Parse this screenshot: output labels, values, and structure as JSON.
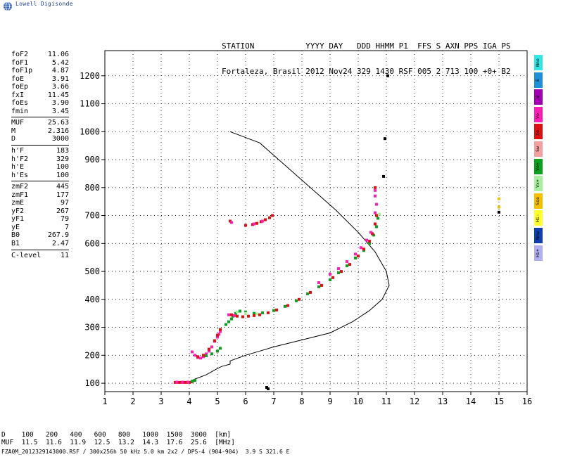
{
  "brand": "Lowell Digisonde",
  "header": {
    "line1": "STATION           YYYY DAY   DDD HHMM P1  FFS S AXN PPS IGA PS",
    "line2": "Fortaleza, Brasil 2012 Nov24 329 1430 RSF 005 2 713 100 +0+ B2"
  },
  "params": {
    "group1": [
      {
        "k": "foF2",
        "v": "11.06"
      },
      {
        "k": "foF1",
        "v": "5.42"
      },
      {
        "k": "foF1p",
        "v": "4.87"
      },
      {
        "k": "foE",
        "v": "3.91"
      },
      {
        "k": "foEp",
        "v": "3.66"
      },
      {
        "k": "fxI",
        "v": "11.45"
      },
      {
        "k": "foEs",
        "v": "3.90"
      },
      {
        "k": "fmin",
        "v": "3.45"
      }
    ],
    "group2": [
      {
        "k": "MUF",
        "v": "25.63"
      },
      {
        "k": "M",
        "v": "2.316"
      },
      {
        "k": "D",
        "v": "3000"
      }
    ],
    "group3": [
      {
        "k": "h'F",
        "v": "183"
      },
      {
        "k": "h'F2",
        "v": "329"
      },
      {
        "k": "h'E",
        "v": "100"
      },
      {
        "k": "h'Es",
        "v": "100"
      }
    ],
    "group4": [
      {
        "k": "zmF2",
        "v": "445"
      },
      {
        "k": "zmF1",
        "v": "177"
      },
      {
        "k": "zmE",
        "v": "97"
      },
      {
        "k": "yF2",
        "v": "267"
      },
      {
        "k": "yF1",
        "v": "79"
      },
      {
        "k": "yE",
        "v": "7"
      },
      {
        "k": "B0",
        "v": "267.9"
      },
      {
        "k": "B1",
        "v": "2.47"
      }
    ],
    "group5": [
      {
        "k": "C-level",
        "v": "11"
      }
    ]
  },
  "legend": [
    {
      "label": "Nne",
      "color": "#33e5e5"
    },
    {
      "label": "E",
      "color": "#1f8fd6"
    },
    {
      "label": "W",
      "color": "#a000b0"
    },
    {
      "label": "Vo-",
      "color": "#ff1fb4"
    },
    {
      "label": "Xo-",
      "color": "#e01010"
    },
    {
      "label": "Sw",
      "color": "#f2a0a0"
    },
    {
      "label": "Vo+",
      "color": "#0aa020"
    },
    {
      "label": "Vx+",
      "color": "#a8f0a0"
    },
    {
      "label": "Sse",
      "color": "#f5c000"
    },
    {
      "label": "Hi-",
      "color": "#ffff30"
    },
    {
      "label": "Nnw",
      "color": "#1040b0"
    },
    {
      "label": "Hi+",
      "color": "#b0b0f0"
    }
  ],
  "muf_table": {
    "d_label": "D",
    "d_values": [
      "100",
      "200",
      "400",
      "600",
      "800",
      "1000",
      "1500",
      "3000"
    ],
    "d_unit": "[km]",
    "muf_label": "MUF",
    "muf_values": [
      "11.5",
      "11.6",
      "11.9",
      "12.5",
      "13.2",
      "14.3",
      "17.6",
      "25.6"
    ],
    "muf_unit": "[MHz]"
  },
  "footer": "FZA0M_2012329143000.RSF / 300x256h 50 kHz 5.0 km 2x2 / DPS-4 (904-904)  3.9 S 321.6 E",
  "chart_data": {
    "type": "scatter",
    "xlim": [
      1,
      16
    ],
    "ylim": [
      70,
      1290
    ],
    "xticks": [
      1,
      2,
      3,
      4,
      5,
      6,
      7,
      8,
      9,
      10,
      11,
      12,
      13,
      14,
      15,
      16
    ],
    "yticks": [
      100,
      200,
      300,
      400,
      500,
      600,
      700,
      800,
      900,
      1000,
      1100,
      1200
    ],
    "grid": true,
    "profile": {
      "name": "",
      "color": "#000000",
      "points": [
        [
          3.9,
          100
        ],
        [
          4.2,
          115
        ],
        [
          4.6,
          130
        ],
        [
          4.95,
          150
        ],
        [
          5.15,
          160
        ],
        [
          5.45,
          168
        ],
        [
          5.45,
          180
        ],
        [
          6.0,
          200
        ],
        [
          7.0,
          230
        ],
        [
          8.0,
          255
        ],
        [
          9.0,
          280
        ],
        [
          9.8,
          320
        ],
        [
          10.4,
          360
        ],
        [
          10.85,
          400
        ],
        [
          11.1,
          450
        ],
        [
          11.0,
          500
        ],
        [
          10.6,
          570
        ],
        [
          10.0,
          640
        ],
        [
          9.2,
          720
        ],
        [
          8.3,
          800
        ],
        [
          7.4,
          880
        ],
        [
          6.5,
          960
        ],
        [
          5.45,
          1000
        ]
      ]
    },
    "traces": [
      {
        "name": "",
        "color": "#e01010",
        "points": [
          [
            3.5,
            103
          ],
          [
            3.6,
            103
          ],
          [
            3.7,
            103
          ],
          [
            3.8,
            103
          ],
          [
            3.9,
            103
          ],
          [
            4.0,
            103
          ],
          [
            4.1,
            105
          ]
        ]
      },
      {
        "name": "",
        "color": "#ff1fb4",
        "points": [
          [
            3.55,
            104
          ],
          [
            3.75,
            104
          ],
          [
            3.95,
            104
          ]
        ]
      },
      {
        "name": "",
        "color": "#0aa020",
        "points": [
          [
            4.1,
            107
          ],
          [
            4.2,
            110
          ]
        ]
      },
      {
        "name": "",
        "color": "#ff1fb4",
        "points": [
          [
            4.1,
            212
          ],
          [
            4.2,
            200
          ],
          [
            4.3,
            192
          ],
          [
            4.4,
            190
          ],
          [
            4.5,
            195
          ],
          [
            4.6,
            205
          ],
          [
            4.7,
            215
          ],
          [
            4.8,
            230
          ],
          [
            4.9,
            250
          ],
          [
            5.0,
            265
          ],
          [
            5.05,
            275
          ],
          [
            5.1,
            285
          ]
        ]
      },
      {
        "name": "",
        "color": "#e01010",
        "points": [
          [
            4.3,
            195
          ],
          [
            4.5,
            200
          ],
          [
            4.7,
            222
          ],
          [
            4.9,
            252
          ],
          [
            5.0,
            272
          ],
          [
            5.1,
            292
          ]
        ]
      },
      {
        "name": "",
        "color": "#0aa020",
        "points": [
          [
            4.6,
            198
          ],
          [
            4.8,
            205
          ],
          [
            5.0,
            215
          ],
          [
            5.1,
            225
          ]
        ]
      },
      {
        "name": "",
        "color": "#0aa020",
        "points": [
          [
            5.3,
            310
          ],
          [
            5.4,
            320
          ],
          [
            5.5,
            330
          ],
          [
            5.55,
            340
          ],
          [
            5.65,
            350
          ],
          [
            5.8,
            358
          ],
          [
            6.0,
            355
          ],
          [
            6.3,
            350
          ],
          [
            6.6,
            352
          ],
          [
            7.0,
            360
          ],
          [
            7.4,
            375
          ],
          [
            7.8,
            395
          ],
          [
            8.2,
            420
          ],
          [
            8.6,
            445
          ],
          [
            9.0,
            470
          ],
          [
            9.3,
            495
          ],
          [
            9.6,
            520
          ],
          [
            9.9,
            548
          ],
          [
            10.2,
            575
          ],
          [
            10.4,
            600
          ],
          [
            10.55,
            630
          ],
          [
            10.65,
            660
          ],
          [
            10.7,
            690
          ]
        ]
      },
      {
        "name": "",
        "color": "#a8f0a0",
        "points": [
          [
            5.7,
            355
          ],
          [
            6.0,
            350
          ],
          [
            6.4,
            348
          ],
          [
            6.8,
            352
          ],
          [
            10.75,
            705
          ]
        ]
      },
      {
        "name": "",
        "color": "#e01010",
        "points": [
          [
            5.5,
            345
          ],
          [
            5.7,
            340
          ],
          [
            5.9,
            338
          ],
          [
            6.1,
            340
          ],
          [
            6.3,
            342
          ],
          [
            6.5,
            345
          ],
          [
            6.8,
            352
          ],
          [
            7.1,
            362
          ],
          [
            7.5,
            378
          ],
          [
            7.9,
            400
          ],
          [
            8.3,
            425
          ],
          [
            8.7,
            450
          ],
          [
            9.1,
            478
          ],
          [
            9.4,
            500
          ],
          [
            9.7,
            525
          ],
          [
            10.0,
            555
          ],
          [
            10.2,
            580
          ],
          [
            10.4,
            608
          ],
          [
            10.5,
            635
          ],
          [
            10.6,
            670
          ],
          [
            10.65,
            700
          ],
          [
            10.6,
            800
          ]
        ]
      },
      {
        "name": "",
        "color": "#ff1fb4",
        "points": [
          [
            5.4,
            345
          ],
          [
            5.6,
            342
          ],
          [
            8.6,
            460
          ],
          [
            9.0,
            490
          ],
          [
            9.3,
            510
          ],
          [
            9.6,
            535
          ],
          [
            9.9,
            562
          ],
          [
            10.1,
            585
          ],
          [
            10.3,
            612
          ],
          [
            10.45,
            640
          ],
          [
            10.6,
            710
          ],
          [
            10.65,
            740
          ],
          [
            10.6,
            770
          ],
          [
            10.6,
            790
          ]
        ]
      },
      {
        "name": "",
        "color": "#e01010",
        "points": [
          [
            5.45,
            680
          ],
          [
            6.0,
            665
          ],
          [
            6.25,
            668
          ],
          [
            6.4,
            672
          ],
          [
            6.55,
            678
          ],
          [
            6.7,
            685
          ],
          [
            6.85,
            692
          ],
          [
            6.95,
            700
          ]
        ]
      },
      {
        "name": "",
        "color": "#ff1fb4",
        "points": [
          [
            5.5,
            675
          ],
          [
            6.3,
            670
          ],
          [
            6.6,
            680
          ]
        ]
      },
      {
        "name": "",
        "color": "#000000",
        "points": [
          [
            6.75,
            85
          ],
          [
            6.8,
            80
          ],
          [
            10.95,
            975
          ],
          [
            10.9,
            840
          ],
          [
            11.05,
            1200
          ]
        ]
      },
      {
        "name": "",
        "color": "#f5c000",
        "points": [
          [
            15.0,
            760
          ],
          [
            15.0,
            730
          ]
        ]
      },
      {
        "name": "",
        "color": "#000000",
        "points": [
          [
            15.0,
            712
          ]
        ]
      }
    ]
  }
}
